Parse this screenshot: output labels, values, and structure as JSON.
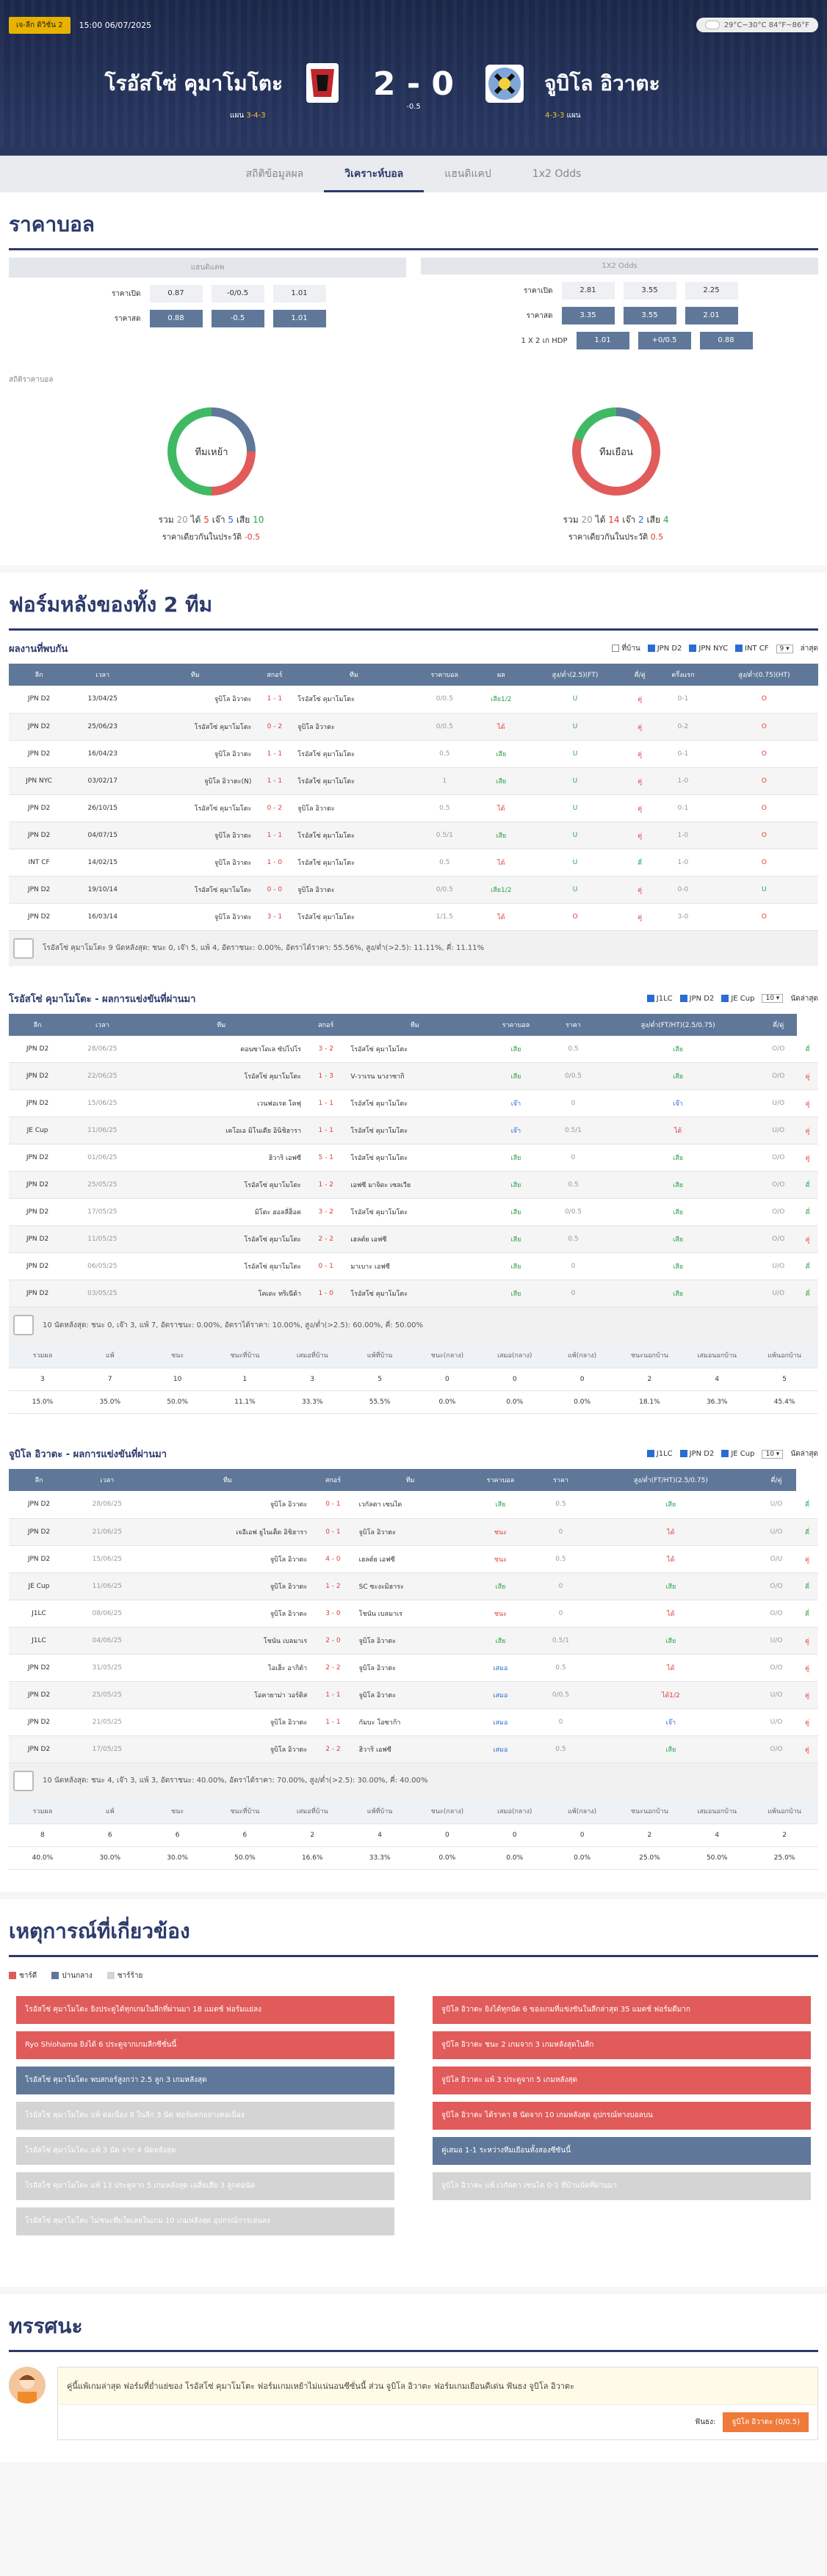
{
  "header": {
    "league": "เจ-ลีก ดิวิชั่น 2",
    "datetime": "15:00 06/07/2025",
    "weather": "29°C~30°C 84°F~86°F",
    "home": "โรอัสโซ่ คุมาโมโตะ",
    "away": "จูบิโล อิวาตะ",
    "score": "2 - 0",
    "handicap": "-0.5",
    "home_form_label": "แผน",
    "home_form": "3-4-3",
    "away_form": "4-3-3",
    "away_form_label": "แผน"
  },
  "tabs": [
    "สถิติข้อมูลผล",
    "วิเคราะห์บอล",
    "แฮนดิแคป",
    "1x2 Odds"
  ],
  "odds": {
    "title": "ราคาบอล",
    "hdp_head": "แฮนดิแคพ",
    "x12_head": "1X2 Odds",
    "hdp_rows": [
      {
        "label": "ราคาเปิด",
        "v": [
          "0.87",
          "-0/0.5",
          "1.01"
        ]
      },
      {
        "label": "ราคาสด",
        "v": [
          "0.88",
          "-0.5",
          "1.01"
        ]
      }
    ],
    "x12_rows": [
      {
        "label": "ราคาเปิด",
        "v": [
          "2.81",
          "3.55",
          "2.25"
        ]
      },
      {
        "label": "ราคาสด",
        "v": [
          "3.35",
          "3.55",
          "2.01"
        ]
      },
      {
        "label": "1 X 2 เก HDP",
        "v": [
          "1.01",
          "+0/0.5",
          "0.88"
        ]
      }
    ],
    "stats_title": "สถิติราคาบอล",
    "home_donut": {
      "center": "ทีมเหย้า",
      "total_label": "รวม",
      "total": "20",
      "win_label": "ได้",
      "win": "5",
      "draw_label": "เจ๊า",
      "draw": "5",
      "lose_label": "เสีย",
      "lose": "10",
      "line_label": "ราคาเดียวกันในประวัติ",
      "line": "-0.5",
      "color_win": "#e15b5b",
      "color_draw": "#5f7899",
      "color_lose": "#3fba63"
    },
    "away_donut": {
      "center": "ทีมเยือน",
      "total_label": "รวม",
      "total": "20",
      "win_label": "ได้",
      "win": "14",
      "draw_label": "เจ๊า",
      "draw": "2",
      "lose_label": "เสีย",
      "lose": "4",
      "line_label": "ราคาเดียวกันในประวัติ",
      "line": "0.5",
      "color_win": "#e15b5b",
      "color_draw": "#5f7899",
      "color_lose": "#3fba63"
    }
  },
  "form": {
    "title": "ฟอร์มหลังของทั้ง 2 ทีม",
    "h2h": {
      "title": "ผลงานที่พบกัน",
      "filters": [
        "ที่บ้าน",
        "JPN D2",
        "JPN NYC",
        "INT CF"
      ],
      "sel": "ล่าสุด",
      "head": [
        "ลีก",
        "เวลา",
        "ทีม",
        "สกอร์",
        "ทีม",
        "ราคาบอล",
        "ผล",
        "สูง/ต่ำ(2.5)(FT)",
        "คี่/คู่",
        "ครึ่งแรก",
        "สูง/ต่ำ(0.75)(HT)"
      ],
      "rows": [
        [
          "JPN D2",
          "13/04/25",
          "จูบิโล อิวาตะ",
          "1 - 1",
          "โรอัสโซ่ คุมาโมโตะ",
          "0/0.5",
          "เสีย1/2",
          "U",
          "คู่",
          "0-1",
          "O"
        ],
        [
          "JPN D2",
          "25/06/23",
          "โรอัสโซ่ คุมาโมโตะ",
          "0 - 2",
          "จูบิโล อิวาตะ",
          "0/0.5",
          "ได้",
          "U",
          "คู่",
          "0-2",
          "O"
        ],
        [
          "JPN D2",
          "16/04/23",
          "จูบิโล อิวาตะ",
          "1 - 1",
          "โรอัสโซ่ คุมาโมโตะ",
          "0.5",
          "เสีย",
          "U",
          "คู่",
          "0-1",
          "O"
        ],
        [
          "JPN NYC",
          "03/02/17",
          "จูบิโล อิวาตะ(N)",
          "1 - 1",
          "โรอัสโซ่ คุมาโมโตะ",
          "1",
          "เสีย",
          "U",
          "คู่",
          "1-0",
          "O"
        ],
        [
          "JPN D2",
          "26/10/15",
          "โรอัสโซ่ คุมาโมโตะ",
          "0 - 2",
          "จูบิโล อิวาตะ",
          "0.5",
          "ได้",
          "U",
          "คู่",
          "0-1",
          "O"
        ],
        [
          "JPN D2",
          "04/07/15",
          "จูบิโล อิวาตะ",
          "1 - 1",
          "โรอัสโซ่ คุมาโมโตะ",
          "0.5/1",
          "เสีย",
          "U",
          "คู่",
          "1-0",
          "O"
        ],
        [
          "INT CF",
          "14/02/15",
          "จูบิโล อิวาตะ",
          "1 - 0",
          "โรอัสโซ่ คุมาโมโตะ",
          "0.5",
          "ได้",
          "U",
          "คี่",
          "1-0",
          "O"
        ],
        [
          "JPN D2",
          "19/10/14",
          "โรอัสโซ่ คุมาโมโตะ",
          "0 - 0",
          "จูบิโล อิวาตะ",
          "0/0.5",
          "เสีย1/2",
          "U",
          "คู่",
          "0-0",
          "U"
        ],
        [
          "JPN D2",
          "16/03/14",
          "จูบิโล อิวาตะ",
          "3 - 1",
          "โรอัสโซ่ คุมาโมโตะ",
          "1/1.5",
          "ได้",
          "O",
          "คู่",
          "3-0",
          "O"
        ]
      ],
      "summary": "โรอัสโซ่ คุมาโมโตะ 9 นัดหลังสุด: ชนะ 0, เจ๊า 5, แพ้ 4, อัตราชนะ: 0.00%, อัตราได้ราคา: 55.56%, สูง/ต่ำ(>2.5): 11.11%, คี่: 11.11%"
    },
    "home_recent": {
      "title": "โรอัสโซ่ คุมาโมโตะ - ผลการแข่งขันที่ผ่านมา",
      "filters": [
        "J1LC",
        "JPN D2",
        "JE Cup"
      ],
      "sel": "10",
      "sel2": "นัดล่าสุด",
      "head": [
        "ลีก",
        "เวลา",
        "ทีม",
        "สกอร์",
        "ทีม",
        "ราคาบอล",
        "ราคา",
        "สูง/ต่ำ(FT/HT)(2.5/0.75)",
        "คี่/คู่"
      ],
      "rows": [
        [
          "JPN D2",
          "28/06/25",
          "คอนซาโดเล ซัปโปโร",
          "3 - 2",
          "โรอัสโซ่ คุมาโมโตะ",
          "เสีย",
          "0.5",
          "เสีย",
          "O/O",
          "คี่"
        ],
        [
          "JPN D2",
          "22/06/25",
          "โรอัสโซ่ คุมาโมโตะ",
          "1 - 3",
          "V-วาเรน นางาซากิ",
          "เสีย",
          "0/0.5",
          "เสีย",
          "O/O",
          "คู่"
        ],
        [
          "JPN D2",
          "15/06/25",
          "เวนฟอเรต โคฟุ",
          "1 - 1",
          "โรอัสโซ่ คุมาโมโตะ",
          "เจ๊า",
          "0",
          "เจ๊า",
          "U/O",
          "คู่"
        ],
        [
          "JE Cup",
          "11/06/25",
          "เคโอเอ มิโนเดีย อินิชิฮารา",
          "1 - 1",
          "โรอัสโซ่ คุมาโมโตะ",
          "เจ๊า",
          "0.5/1",
          "ได้",
          "U/O",
          "คู่"
        ],
        [
          "JPN D2",
          "01/06/25",
          "ฮิวาริ เอฟซี",
          "5 - 1",
          "โรอัสโซ่ คุมาโมโตะ",
          "เสีย",
          "0",
          "เสีย",
          "O/O",
          "คู่"
        ],
        [
          "JPN D2",
          "25/05/25",
          "โรอัสโซ่ คุมาโมโตะ",
          "1 - 2",
          "เอฟซี มาจิดะ เซลเวีย",
          "เสีย",
          "0.5",
          "เสีย",
          "O/O",
          "คี่"
        ],
        [
          "JPN D2",
          "17/05/25",
          "มิโตะ ฮอลลี่ฮ็อค",
          "3 - 2",
          "โรอัสโซ่ คุมาโมโตะ",
          "เสีย",
          "0/0.5",
          "เสีย",
          "O/O",
          "คี่"
        ],
        [
          "JPN D2",
          "11/05/25",
          "โรอัสโซ่ คุมาโมโตะ",
          "2 - 2",
          "เฮลต์ย เอฟซี",
          "เสีย",
          "0.5",
          "เสีย",
          "O/O",
          "คู่"
        ],
        [
          "JPN D2",
          "06/05/25",
          "โรอัสโซ่ คุมาโมโตะ",
          "0 - 1",
          "มาเบาะ เอฟซี",
          "เสีย",
          "0",
          "เสีย",
          "U/O",
          "คี่"
        ],
        [
          "JPN D2",
          "03/05/25",
          "โคเดะ ทริเนีต้า",
          "1 - 0",
          "โรอัสโซ่ คุมาโมโตะ",
          "เสีย",
          "0",
          "เสีย",
          "U/O",
          "คี่"
        ]
      ],
      "summary": "10 นัดหลังสุด: ชนะ 0, เจ๊า 3, แพ้ 7, อัตราชนะ: 0.00%, อัตราได้ราคา: 10.00%, สูง/ต่ำ(>2.5): 60.00%, คี่: 50.00%",
      "stat_head": [
        "รวมผล",
        "แพ้",
        "ชนะ",
        "ชนะที่บ้าน",
        "เสมอที่บ้าน",
        "แพ้ที่บ้าน",
        "ชนะ(กลาง)",
        "เสมอ(กลาง)",
        "แพ้(กลาง)",
        "ชนะนอกบ้าน",
        "เสมอนอกบ้าน",
        "แพ้นอกบ้าน"
      ],
      "stat_counts": [
        "3",
        "7",
        "10",
        "1",
        "3",
        "5",
        "0",
        "0",
        "0",
        "2",
        "4",
        "5"
      ],
      "stat_pcts": [
        "15.0%",
        "35.0%",
        "50.0%",
        "11.1%",
        "33.3%",
        "55.5%",
        "0.0%",
        "0.0%",
        "0.0%",
        "18.1%",
        "36.3%",
        "45.4%"
      ]
    },
    "away_recent": {
      "title": "จูบิโล อิวาตะ - ผลการแข่งขันที่ผ่านมา",
      "filters": [
        "J1LC",
        "JPN D2",
        "JE Cup"
      ],
      "sel": "10",
      "sel2": "นัดล่าสุด",
      "head": [
        "ลีก",
        "เวลา",
        "ทีม",
        "สกอร์",
        "ทีม",
        "ราคาบอล",
        "ราคา",
        "สูง/ต่ำ(FT/HT)(2.5/0.75)",
        "คี่/คู่"
      ],
      "rows": [
        [
          "JPN D2",
          "28/06/25",
          "จูบิโล อิวาตะ",
          "0 - 1",
          "เวกัลตา เซนได",
          "เสีย",
          "0.5",
          "เสีย",
          "U/O",
          "คี่"
        ],
        [
          "JPN D2",
          "21/06/25",
          "เจอีเอฟ ยูไนเต็ด อิชิฮารา",
          "0 - 1",
          "จูบิโล อิวาตะ",
          "ชนะ",
          "0",
          "ได้",
          "U/O",
          "คี่"
        ],
        [
          "JPN D2",
          "15/06/25",
          "จูบิโล อิวาตะ",
          "4 - 0",
          "เฮลต์ย เอฟซี",
          "ชนะ",
          "0.5",
          "ได้",
          "O/U",
          "คู่"
        ],
        [
          "JE Cup",
          "11/06/25",
          "จูบิโล อิวาตะ",
          "1 - 2",
          "SC ซะงะมิฮาระ",
          "เสีย",
          "0",
          "เสีย",
          "O/O",
          "คี่"
        ],
        [
          "J1LC",
          "08/06/25",
          "จูบิโล อิวาตะ",
          "3 - 0",
          "โชนัน เบลมาเร",
          "ชนะ",
          "0",
          "ได้",
          "O/O",
          "คี่"
        ],
        [
          "J1LC",
          "04/06/25",
          "โชนัน เบลมาเร",
          "2 - 0",
          "จูบิโล อิวาตะ",
          "เสีย",
          "0.5/1",
          "เสีย",
          "U/O",
          "คู่"
        ],
        [
          "JPN D2",
          "31/05/25",
          "ไอเฮ็ะ อากิต้า",
          "2 - 2",
          "จูบิโล อิวาตะ",
          "เสมอ",
          "0.5",
          "ได้",
          "O/O",
          "คู่"
        ],
        [
          "JPN D2",
          "25/05/25",
          "โอคายาม่า วอร์ติส",
          "1 - 1",
          "จูบิโล อิวาตะ",
          "เสมอ",
          "0/0.5",
          "ได้1/2",
          "U/O",
          "คู่"
        ],
        [
          "JPN D2",
          "21/05/25",
          "จูบิโล อิวาตะ",
          "1 - 1",
          "กัมบะ โอซาก้า",
          "เสมอ",
          "0",
          "เจ๊า",
          "U/O",
          "คู่"
        ],
        [
          "JPN D2",
          "17/05/25",
          "จูบิโล อิวาตะ",
          "2 - 2",
          "ฮิวาริ เอฟซี",
          "เสมอ",
          "0.5",
          "เสีย",
          "O/O",
          "คู่"
        ]
      ],
      "summary": "10 นัดหลังสุด: ชนะ 4, เจ๊า 3, แพ้ 3, อัตราชนะ: 40.00%, อัตราได้ราคา: 70.00%, สูง/ต่ำ(>2.5): 30.00%, คี่: 40.00%",
      "stat_head": [
        "รวมผล",
        "แพ้",
        "ชนะ",
        "ชนะที่บ้าน",
        "เสมอที่บ้าน",
        "แพ้ที่บ้าน",
        "ชนะ(กลาง)",
        "เสมอ(กลาง)",
        "แพ้(กลาง)",
        "ชนะนอกบ้าน",
        "เสมอนอกบ้าน",
        "แพ้นอกบ้าน"
      ],
      "stat_counts": [
        "8",
        "6",
        "6",
        "6",
        "2",
        "4",
        "0",
        "0",
        "0",
        "2",
        "4",
        "2"
      ],
      "stat_pcts": [
        "40.0%",
        "30.0%",
        "30.0%",
        "50.0%",
        "16.6%",
        "33.3%",
        "0.0%",
        "0.0%",
        "0.0%",
        "25.0%",
        "50.0%",
        "25.0%"
      ]
    }
  },
  "events": {
    "title": "เหตุการณ์ที่เกี่ยวข้อง",
    "legend": [
      "ชาร์ดี",
      "ปานกลาง",
      "ชาร์ร้าย"
    ],
    "left": [
      {
        "t": "โรอัสโซ่ คุมาโมโตะ ยิงประตูได้ทุกเกมในลีกที่ผ่านมา 18 แมตช์ ฟอร์มแย่ลง",
        "c": "red"
      },
      {
        "t": "Ryo Shiohama ยิงได้ 6 ประตูจากเกมลีกซีซั่นนี้",
        "c": "red"
      },
      {
        "t": "โรอัสโซ่ คุมาโมโตะ พบสกอร์สูงกว่า 2.5 ลูก 3 เกมหลังสุด",
        "c": "blue"
      },
      {
        "t": "โรอัสโซ่ คุมาโมโตะ แพ้ ต่อเนื่อง 8 ในลีก 3 นัด ฟอร์มตกอย่างต่อเนื่อง",
        "c": "gray"
      },
      {
        "t": "โรอัสโซ่ คุมาโมโตะ แพ้ 3 นัด จาก 4 นัดหลังสุด",
        "c": "gray"
      },
      {
        "t": "โรอัสโซ่ คุมาโมโตะ แพ้ 13 ประตูจาก 5 เกมหลังสุด เฉลี่ยเสีย 3 ลูกต่อนัด",
        "c": "gray"
      },
      {
        "t": "โรอัสโซ่ คุมาโมโตะ ไม่ชนะทีมใดเลยในเกม 10 เกมหลังสุด อุปกรณ์การเล่นลง",
        "c": "gray"
      }
    ],
    "right": [
      {
        "t": "จูบิโล อิวาตะ ยิงได้ทุกนัด 6 ของเกมที่แข่งขันในลีกล่าสุด 35 แมตช์ ฟอร์มดีมาก",
        "c": "red"
      },
      {
        "t": "จูบิโล อิวาตะ ชนะ 2 เกมจาก 3 เกมหลังสุดในลีก",
        "c": "red"
      },
      {
        "t": "จูบิโล อิวาตะ แพ้ 3 ประตูจาก 5 เกมหลังสุด",
        "c": "red"
      },
      {
        "t": "จูบิโล อิวาตะ ได้ราคา 8 นัดจาก 10 เกมหลังสุด อุปกรณ์ทางบอลบน",
        "c": "red"
      },
      {
        "t": "คู่เสมอ 1-1 ระหว่างทีมเยือนทั้งสองซีซันนี้",
        "c": "blue"
      },
      {
        "t": "จูบิโล อิวาตะ แพ้ เวกัลตา เซนได 0-1 ที่บ้านนัดที่ผ่านมา",
        "c": "gray"
      }
    ]
  },
  "opinion": {
    "title": "ทรรศนะ",
    "text": "คู่นี้แพ้เกมล่าสุด ฟอร์มที่ย่ำแย่ของ โรอัสโซ่ คุมาโมโตะ ฟอร์มเกมเหย้าไม่แน่นอนซีซั่นนี้ ส่วน จูบิโล อิวาตะ ฟอร์มเกมเยือนดีเด่น ฟันธง จูบิโล อิวาตะ",
    "pick_label": "ฟันธง:",
    "pick": "จูบิโล อิวาตะ (0/0.5)"
  }
}
